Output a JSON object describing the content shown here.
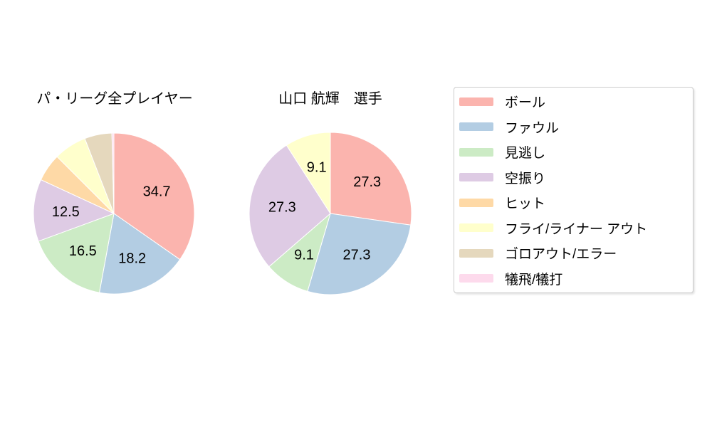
{
  "figure": {
    "background": "#ffffff",
    "text_color": "#000000",
    "wedge_edge_color": "#ffffff"
  },
  "chart_data": [
    {
      "type": "pie",
      "title": "パ・リーグ全プレイヤー",
      "start_angle_deg": 90,
      "direction": "clockwise",
      "label_distance_ratio": 0.6,
      "min_label_pct": 9,
      "slices": [
        {
          "label": "ボール",
          "value": 34.7,
          "color": "#fbb4ae"
        },
        {
          "label": "ファウル",
          "value": 18.2,
          "color": "#b3cde3"
        },
        {
          "label": "見逃し",
          "value": 16.5,
          "color": "#ccebc5"
        },
        {
          "label": "空振り",
          "value": 12.5,
          "color": "#decbe4"
        },
        {
          "label": "ヒット",
          "value": 5.6,
          "color": "#fed9a6"
        },
        {
          "label": "フライ/ライナー アウト",
          "value": 6.6,
          "color": "#ffffcc"
        },
        {
          "label": "ゴロアウト/エラー",
          "value": 5.5,
          "color": "#e5d8bd"
        },
        {
          "label": "犠飛/犠打",
          "value": 0.4,
          "color": "#fddaec"
        }
      ]
    },
    {
      "type": "pie",
      "title": "山口 航輝　選手",
      "start_angle_deg": 90,
      "direction": "clockwise",
      "label_distance_ratio": 0.6,
      "min_label_pct": 9,
      "slices": [
        {
          "label": "ボール",
          "value": 27.3,
          "color": "#fbb4ae"
        },
        {
          "label": "ファウル",
          "value": 27.3,
          "color": "#b3cde3"
        },
        {
          "label": "見逃し",
          "value": 9.1,
          "color": "#ccebc5"
        },
        {
          "label": "空振り",
          "value": 27.3,
          "color": "#decbe4"
        },
        {
          "label": "ヒット",
          "value": 0,
          "color": "#fed9a6"
        },
        {
          "label": "フライ/ライナー アウト",
          "value": 9.1,
          "color": "#ffffcc"
        },
        {
          "label": "ゴロアウト/エラー",
          "value": 0,
          "color": "#e5d8bd"
        },
        {
          "label": "犠飛/犠打",
          "value": 0,
          "color": "#fddaec"
        }
      ]
    }
  ],
  "legend": {
    "position": "right",
    "border_color": "#cccccc",
    "items": [
      {
        "label": "ボール",
        "color": "#fbb4ae"
      },
      {
        "label": "ファウル",
        "color": "#b3cde3"
      },
      {
        "label": "見逃し",
        "color": "#ccebc5"
      },
      {
        "label": "空振り",
        "color": "#decbe4"
      },
      {
        "label": "ヒット",
        "color": "#fed9a6"
      },
      {
        "label": "フライ/ライナー アウト",
        "color": "#ffffcc"
      },
      {
        "label": "ゴロアウト/エラー",
        "color": "#e5d8bd"
      },
      {
        "label": "犠飛/犠打",
        "color": "#fddaec"
      }
    ]
  }
}
